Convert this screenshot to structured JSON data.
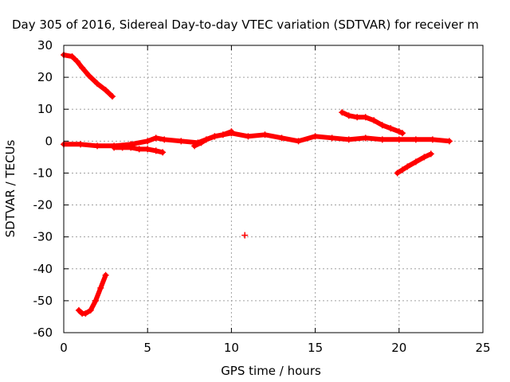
{
  "chart_data": {
    "type": "scatter",
    "title": "Day 305 of 2016, Sidereal Day-to-day VTEC variation (SDTVAR) for receiver m",
    "xlabel": "GPS time / hours",
    "ylabel": "SDTVAR / TECUs",
    "xlim": [
      0,
      25
    ],
    "ylim": [
      -60,
      30
    ],
    "xticks": [
      0,
      5,
      10,
      15,
      20,
      25
    ],
    "yticks": [
      -60,
      -50,
      -40,
      -30,
      -20,
      -10,
      0,
      10,
      20,
      30
    ],
    "grid": true,
    "marker": "+",
    "color": "#ff0000",
    "series": [
      {
        "x": [
          0.0,
          0.5,
          0.8,
          1.1,
          1.5,
          2.0,
          2.5,
          2.9
        ],
        "y": [
          27,
          26.5,
          25,
          23,
          20.5,
          18,
          16,
          14
        ]
      },
      {
        "x": [
          0.0,
          1.0,
          2.0,
          3.0,
          4.0,
          5.0,
          5.5,
          6.0,
          7.0,
          8.0,
          9.0,
          10.0,
          11.0,
          12.0,
          13.0,
          14.0,
          15.0,
          16.0,
          17.0,
          18.0,
          19.0,
          20.0,
          21.0,
          22.0,
          23.0
        ],
        "y": [
          -1,
          -1,
          -1.5,
          -1.5,
          -1,
          0,
          1,
          0.5,
          0,
          -0.5,
          1.5,
          2.5,
          1.5,
          2,
          1,
          0,
          1.5,
          1,
          0.5,
          1,
          0.5,
          0.5,
          0.5,
          0.5,
          0
        ]
      },
      {
        "x": [
          3.0,
          3.5,
          4.0,
          4.5,
          5.0,
          5.5,
          5.9
        ],
        "y": [
          -2,
          -2,
          -2,
          -2.5,
          -2.5,
          -3,
          -3.5
        ]
      },
      {
        "x": [
          7.8,
          8.2,
          8.5,
          9.0,
          9.5,
          10.0
        ],
        "y": [
          -1.5,
          -0.5,
          0.5,
          1.5,
          2,
          3
        ]
      },
      {
        "x": [
          16.6,
          17.0,
          17.5,
          18.0,
          18.5,
          19.0,
          19.5,
          20.0,
          20.2
        ],
        "y": [
          9,
          8,
          7.5,
          7.5,
          6.5,
          5,
          4,
          3,
          2.5
        ]
      },
      {
        "x": [
          19.9,
          20.2,
          20.5,
          21.0,
          21.5,
          21.9
        ],
        "y": [
          -10,
          -9,
          -8,
          -6.5,
          -5,
          -4
        ]
      },
      {
        "x": [
          0.9,
          1.1,
          1.3,
          1.6,
          1.9,
          2.2,
          2.5
        ],
        "y": [
          -53,
          -54,
          -54,
          -53,
          -50,
          -46,
          -42
        ]
      },
      {
        "x": [
          10.8
        ],
        "y": [
          -29.5
        ]
      }
    ]
  }
}
